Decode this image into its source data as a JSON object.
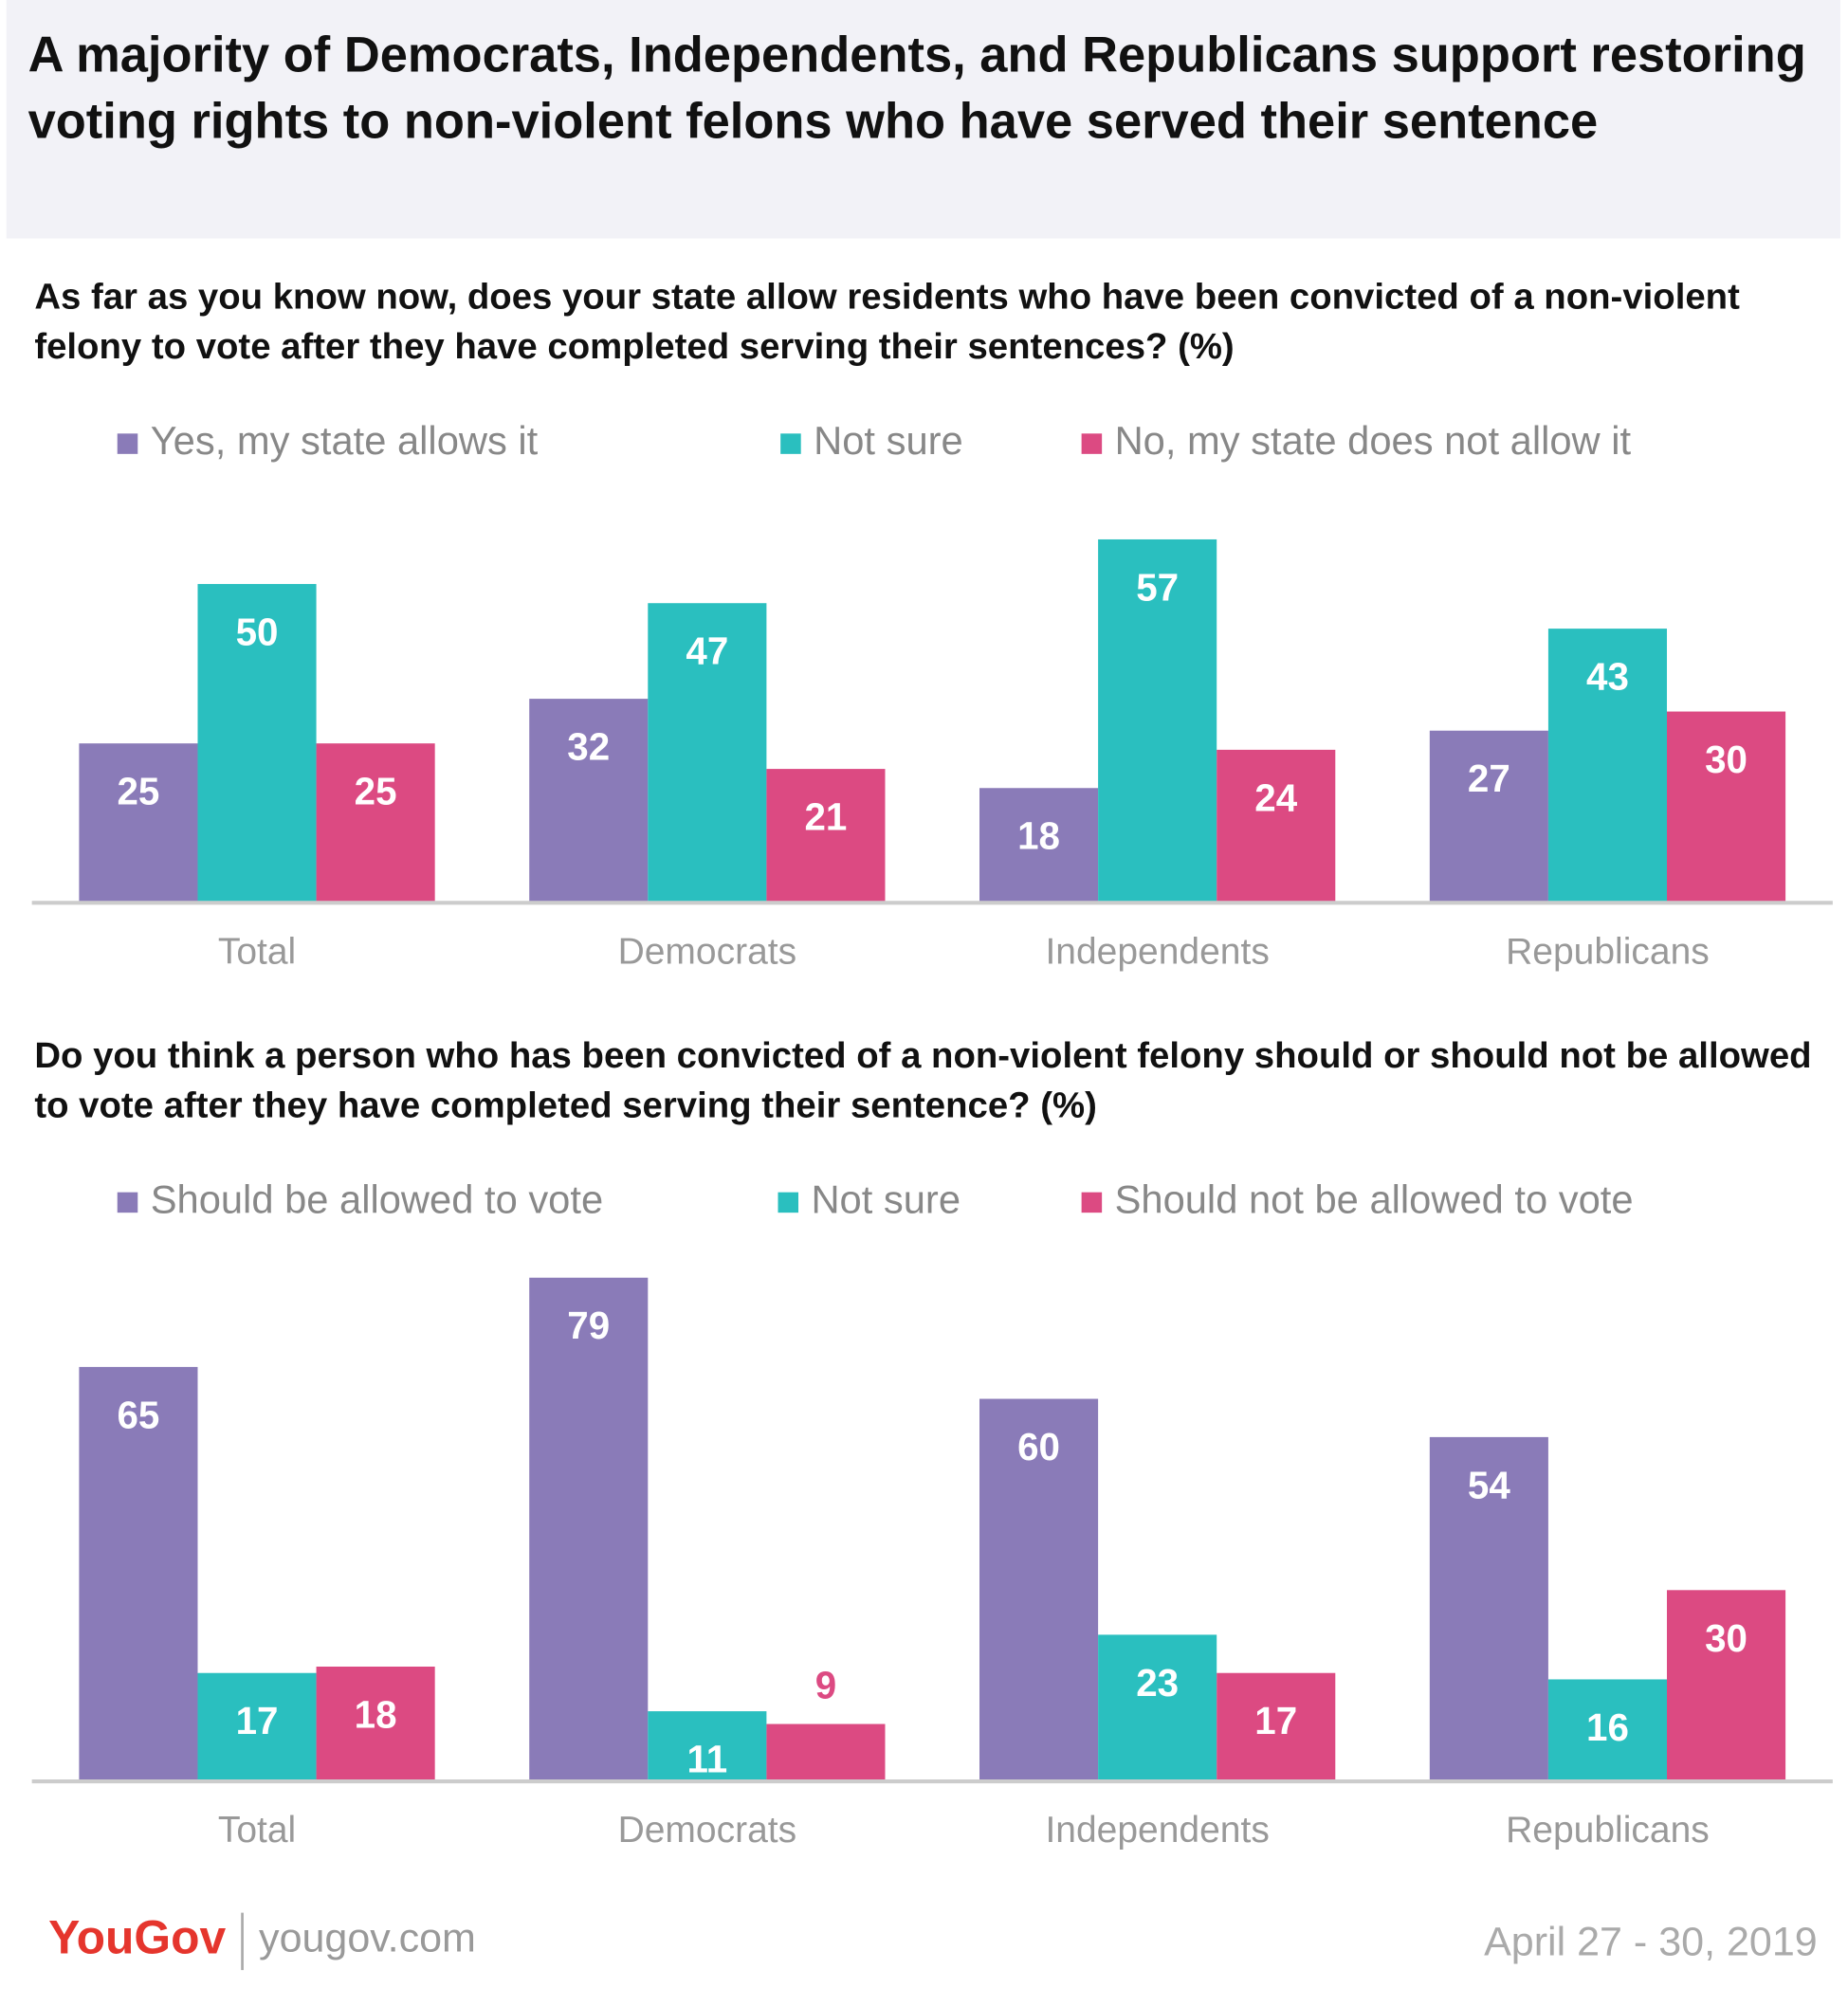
{
  "title": "A majority of Democrats, Independents, and Republicans support restoring voting rights to non-violent felons who have served their sentence",
  "chart_data": [
    {
      "type": "bar",
      "title": "As far as you know now, does your state allow residents who have been convicted of a non-violent felony to vote after they have completed serving their sentences? (%)",
      "categories": [
        "Total",
        "Democrats",
        "Independents",
        "Republicans"
      ],
      "series": [
        {
          "name": "Yes, my state allows it",
          "color": "#8a7bb8",
          "values": [
            25,
            32,
            18,
            27
          ]
        },
        {
          "name": "Not sure",
          "color": "#2abfbf",
          "values": [
            50,
            47,
            57,
            43
          ]
        },
        {
          "name": "No, my state does not allow it",
          "color": "#dc4a82",
          "values": [
            25,
            21,
            24,
            30
          ]
        }
      ],
      "ylim": [
        0,
        80
      ]
    },
    {
      "type": "bar",
      "title": "Do you think a person who has been convicted of a non-violent felony should or should not be allowed to vote after they have completed serving their sentence? (%)",
      "categories": [
        "Total",
        "Democrats",
        "Independents",
        "Republicans"
      ],
      "series": [
        {
          "name": "Should be allowed to vote",
          "color": "#8a7bb8",
          "values": [
            65,
            79,
            60,
            54
          ]
        },
        {
          "name": "Not sure",
          "color": "#2abfbf",
          "values": [
            17,
            11,
            23,
            16
          ]
        },
        {
          "name": "Should not be allowed to vote",
          "color": "#dc4a82",
          "values": [
            18,
            9,
            17,
            30
          ]
        }
      ],
      "ylim": [
        0,
        80
      ]
    }
  ],
  "footer": {
    "brand": "YouGov",
    "site": "yougov.com",
    "date": "April 27 - 30, 2019"
  }
}
